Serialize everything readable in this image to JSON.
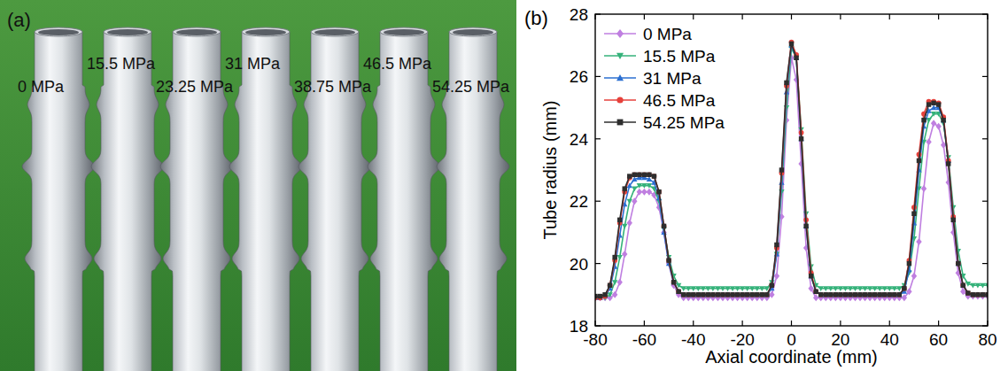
{
  "photo": {
    "label": "(a)",
    "tubes": [
      "0 MPa",
      "15.5 MPa",
      "23.25 MPa",
      "31 MPa",
      "38.75 MPa",
      "46.5 MPa",
      "54.25 MPa"
    ]
  },
  "chart_data": {
    "type": "line",
    "title": "(b)",
    "x_label": "Axial coordinate (mm)",
    "y_label": "Tube radius (mm)",
    "xlim": [
      -80,
      80
    ],
    "xticks": [
      -80,
      -60,
      -40,
      -20,
      0,
      20,
      40,
      60,
      80
    ],
    "ylim": [
      18,
      28
    ],
    "yticks": [
      18,
      20,
      22,
      24,
      26,
      28
    ],
    "grid": false,
    "legend": "upper left",
    "x": [
      -80,
      -78,
      -76,
      -74,
      -72,
      -70,
      -68,
      -66,
      -64,
      -62,
      -60,
      -58,
      -56,
      -54,
      -52,
      -50,
      -48,
      -46,
      -44,
      -42,
      -40,
      -38,
      -36,
      -34,
      -32,
      -30,
      -28,
      -26,
      -24,
      -22,
      -20,
      -18,
      -16,
      -14,
      -12,
      -10,
      -8,
      -6,
      -4,
      -2,
      0,
      2,
      4,
      6,
      8,
      10,
      12,
      14,
      16,
      18,
      20,
      22,
      24,
      26,
      28,
      30,
      32,
      34,
      36,
      38,
      40,
      42,
      44,
      46,
      48,
      50,
      52,
      54,
      56,
      58,
      60,
      62,
      64,
      66,
      68,
      70,
      72,
      74,
      76,
      78,
      80
    ],
    "series": [
      {
        "name": "0 MPa",
        "color": "#bf7fe0",
        "marker": "diamond",
        "values": [
          18.9,
          18.9,
          18.9,
          18.9,
          19.0,
          19.4,
          20.3,
          21.3,
          22.0,
          22.3,
          22.3,
          22.3,
          22.2,
          21.8,
          21.0,
          20.0,
          19.3,
          19.0,
          18.9,
          18.9,
          18.9,
          18.9,
          18.9,
          18.9,
          18.9,
          18.9,
          18.9,
          18.9,
          18.9,
          18.9,
          18.9,
          18.9,
          18.9,
          18.9,
          18.9,
          18.9,
          19.0,
          19.6,
          21.5,
          24.6,
          26.6,
          25.9,
          23.2,
          20.5,
          19.2,
          18.9,
          18.9,
          18.9,
          18.9,
          18.9,
          18.9,
          18.9,
          18.9,
          18.9,
          18.9,
          18.9,
          18.9,
          18.9,
          18.9,
          18.9,
          18.9,
          18.9,
          18.9,
          18.9,
          19.1,
          19.6,
          20.7,
          22.4,
          23.9,
          24.5,
          24.4,
          23.8,
          22.6,
          21.0,
          19.7,
          19.1,
          18.95,
          18.95,
          18.95,
          18.95,
          18.95
        ]
      },
      {
        "name": "15.5 MPa",
        "color": "#35b27a",
        "marker": "triangle-down",
        "values": [
          18.9,
          18.9,
          18.9,
          19.0,
          19.4,
          20.2,
          21.2,
          22.0,
          22.4,
          22.5,
          22.5,
          22.5,
          22.4,
          22.0,
          21.1,
          20.2,
          19.6,
          19.3,
          19.2,
          19.2,
          19.2,
          19.2,
          19.2,
          19.2,
          19.2,
          19.2,
          19.2,
          19.2,
          19.2,
          19.2,
          19.2,
          19.2,
          19.2,
          19.2,
          19.2,
          19.2,
          19.4,
          20.3,
          22.3,
          25.0,
          26.9,
          26.6,
          24.3,
          21.6,
          19.9,
          19.3,
          19.2,
          19.2,
          19.2,
          19.2,
          19.2,
          19.2,
          19.2,
          19.2,
          19.2,
          19.2,
          19.2,
          19.2,
          19.2,
          19.2,
          19.2,
          19.2,
          19.2,
          19.3,
          19.7,
          20.8,
          22.4,
          23.9,
          24.6,
          24.8,
          24.8,
          24.5,
          23.4,
          21.8,
          20.4,
          19.6,
          19.35,
          19.3,
          19.3,
          19.3,
          19.3
        ]
      },
      {
        "name": "31 MPa",
        "color": "#2b6fd1",
        "marker": "triangle-up",
        "values": [
          18.9,
          18.9,
          18.95,
          19.2,
          19.9,
          20.9,
          21.9,
          22.5,
          22.7,
          22.75,
          22.75,
          22.7,
          22.6,
          22.1,
          21.0,
          20.0,
          19.4,
          19.1,
          19.0,
          19.0,
          19.0,
          19.0,
          19.0,
          19.0,
          19.0,
          19.0,
          19.0,
          19.0,
          19.0,
          19.0,
          19.0,
          19.0,
          19.0,
          19.0,
          19.0,
          19.0,
          19.2,
          20.3,
          22.6,
          25.5,
          27.0,
          26.6,
          24.0,
          21.2,
          19.6,
          19.1,
          19.0,
          19.0,
          19.0,
          19.0,
          19.0,
          19.0,
          19.0,
          19.0,
          19.0,
          19.0,
          19.0,
          19.0,
          19.0,
          19.0,
          19.0,
          19.0,
          19.0,
          19.1,
          19.8,
          21.3,
          23.0,
          24.4,
          24.9,
          25.0,
          25.0,
          24.6,
          23.3,
          21.5,
          20.0,
          19.3,
          19.05,
          19.0,
          19.0,
          19.0,
          19.0
        ]
      },
      {
        "name": "46.5 MPa",
        "color": "#e6413b",
        "marker": "circle",
        "values": [
          18.9,
          18.9,
          18.95,
          19.3,
          20.1,
          21.3,
          22.3,
          22.75,
          22.85,
          22.85,
          22.85,
          22.85,
          22.8,
          22.3,
          21.2,
          20.1,
          19.4,
          19.1,
          19.0,
          19.0,
          19.0,
          19.0,
          19.0,
          19.0,
          19.0,
          19.0,
          19.0,
          19.0,
          19.0,
          19.0,
          19.0,
          19.0,
          19.0,
          19.0,
          19.0,
          19.0,
          19.3,
          20.5,
          22.9,
          25.7,
          27.1,
          26.7,
          24.2,
          21.4,
          19.7,
          19.1,
          19.0,
          19.0,
          19.0,
          19.0,
          19.0,
          19.0,
          19.0,
          19.0,
          19.0,
          19.0,
          19.0,
          19.0,
          19.0,
          19.0,
          19.0,
          19.0,
          19.0,
          19.2,
          20.1,
          21.8,
          23.5,
          24.8,
          25.2,
          25.2,
          25.15,
          24.7,
          23.3,
          21.5,
          20.0,
          19.3,
          19.05,
          19.0,
          19.0,
          19.0,
          19.0
        ]
      },
      {
        "name": "54.25 MPa",
        "color": "#2e2e2e",
        "marker": "square",
        "values": [
          18.95,
          18.95,
          19.0,
          19.3,
          20.2,
          21.4,
          22.4,
          22.8,
          22.85,
          22.85,
          22.85,
          22.85,
          22.8,
          22.3,
          21.2,
          20.1,
          19.4,
          19.1,
          19.0,
          19.0,
          19.0,
          19.0,
          19.0,
          19.0,
          19.0,
          19.0,
          19.0,
          19.0,
          19.0,
          19.0,
          19.0,
          19.0,
          19.0,
          19.0,
          19.0,
          19.0,
          19.3,
          20.6,
          23.0,
          25.8,
          27.05,
          26.6,
          24.0,
          21.2,
          19.6,
          19.1,
          19.0,
          19.0,
          19.0,
          19.0,
          19.0,
          19.0,
          19.0,
          19.0,
          19.0,
          19.0,
          19.0,
          19.0,
          19.0,
          19.0,
          19.0,
          19.0,
          19.0,
          19.2,
          20.0,
          21.6,
          23.3,
          24.6,
          25.1,
          25.15,
          25.1,
          24.6,
          23.2,
          21.4,
          20.0,
          19.3,
          19.05,
          19.0,
          19.0,
          19.0,
          19.0
        ]
      }
    ]
  }
}
